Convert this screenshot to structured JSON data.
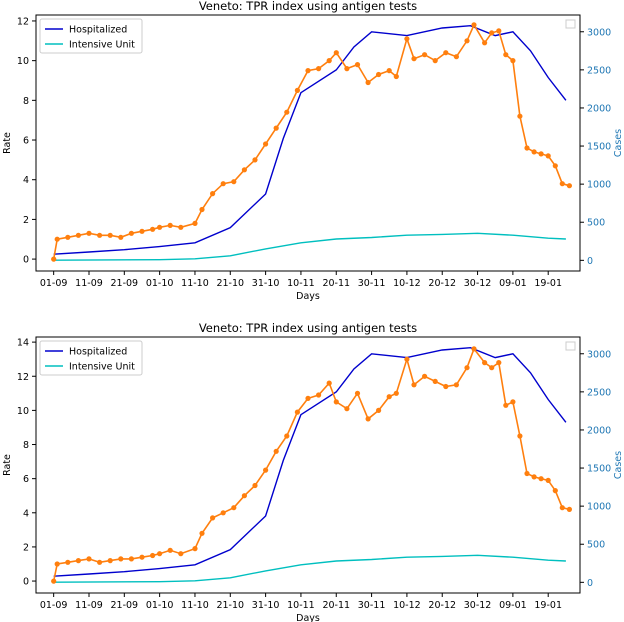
{
  "colors": {
    "hospitalized": "#0000cd",
    "intensive": "#00bfbf",
    "tpr": "#ff7f0e",
    "right_axis": "#1f77b4",
    "axis": "#000000"
  },
  "chart_data": [
    {
      "type": "line",
      "title": "Veneto: TPR index using antigen tests",
      "xlabel": "Days",
      "ylabel_left": "Rate",
      "ylabel_right": "Cases",
      "x_ticks": [
        "01-09",
        "11-09",
        "21-09",
        "01-10",
        "11-10",
        "21-10",
        "31-10",
        "10-11",
        "20-11",
        "30-11",
        "10-12",
        "20-12",
        "30-12",
        "09-01",
        "19-01"
      ],
      "x_range": [
        "2020-08-27",
        "2021-01-28"
      ],
      "ylim_left": [
        -0.6,
        12.3
      ],
      "ylim_right": [
        -140,
        3220
      ],
      "y_ticks_left": [
        0,
        2,
        4,
        6,
        8,
        10,
        12
      ],
      "y_ticks_right": [
        0,
        500,
        1000,
        1500,
        2000,
        2500,
        3000
      ],
      "legend": {
        "placement": "upper left",
        "entries": [
          "Hospitalized",
          "Intensive Unit"
        ]
      },
      "grid": false,
      "series": [
        {
          "name": "Hospitalized",
          "axis": "right",
          "points": [
            [
              "2020-09-01",
              80
            ],
            [
              "2020-09-11",
              110
            ],
            [
              "2020-09-21",
              140
            ],
            [
              "2020-10-01",
              180
            ],
            [
              "2020-10-11",
              230
            ],
            [
              "2020-10-21",
              430
            ],
            [
              "2020-10-31",
              870
            ],
            [
              "2020-11-05",
              1600
            ],
            [
              "2020-11-10",
              2200
            ],
            [
              "2020-11-20",
              2500
            ],
            [
              "2020-11-25",
              2800
            ],
            [
              "2020-11-30",
              3000
            ],
            [
              "2020-12-10",
              2950
            ],
            [
              "2020-12-20",
              3050
            ],
            [
              "2020-12-28",
              3080
            ],
            [
              "2021-01-04",
              2950
            ],
            [
              "2021-01-09",
              3000
            ],
            [
              "2021-01-14",
              2750
            ],
            [
              "2021-01-19",
              2400
            ],
            [
              "2021-01-24",
              2100
            ]
          ]
        },
        {
          "name": "Intensive Unit",
          "axis": "right",
          "points": [
            [
              "2020-09-01",
              2
            ],
            [
              "2020-10-01",
              8
            ],
            [
              "2020-10-11",
              20
            ],
            [
              "2020-10-21",
              60
            ],
            [
              "2020-10-31",
              150
            ],
            [
              "2020-11-10",
              230
            ],
            [
              "2020-11-20",
              280
            ],
            [
              "2020-11-30",
              300
            ],
            [
              "2020-12-10",
              330
            ],
            [
              "2020-12-20",
              340
            ],
            [
              "2020-12-30",
              355
            ],
            [
              "2021-01-09",
              330
            ],
            [
              "2021-01-19",
              290
            ],
            [
              "2021-01-24",
              280
            ]
          ]
        },
        {
          "name": "",
          "axis": "left",
          "markers": true,
          "points": [
            [
              "2020-09-01",
              0
            ],
            [
              "2020-09-02",
              1.0
            ],
            [
              "2020-09-05",
              1.1
            ],
            [
              "2020-09-08",
              1.2
            ],
            [
              "2020-09-11",
              1.3
            ],
            [
              "2020-09-14",
              1.2
            ],
            [
              "2020-09-17",
              1.2
            ],
            [
              "2020-09-20",
              1.1
            ],
            [
              "2020-09-23",
              1.3
            ],
            [
              "2020-09-26",
              1.4
            ],
            [
              "2020-09-29",
              1.5
            ],
            [
              "2020-10-01",
              1.6
            ],
            [
              "2020-10-04",
              1.7
            ],
            [
              "2020-10-07",
              1.6
            ],
            [
              "2020-10-11",
              1.8
            ],
            [
              "2020-10-13",
              2.5
            ],
            [
              "2020-10-16",
              3.3
            ],
            [
              "2020-10-19",
              3.8
            ],
            [
              "2020-10-22",
              3.9
            ],
            [
              "2020-10-25",
              4.5
            ],
            [
              "2020-10-28",
              5.0
            ],
            [
              "2020-10-31",
              5.8
            ],
            [
              "2020-11-03",
              6.6
            ],
            [
              "2020-11-06",
              7.4
            ],
            [
              "2020-11-09",
              8.5
            ],
            [
              "2020-11-12",
              9.5
            ],
            [
              "2020-11-15",
              9.6
            ],
            [
              "2020-11-18",
              10.0
            ],
            [
              "2020-11-20",
              10.4
            ],
            [
              "2020-11-23",
              9.6
            ],
            [
              "2020-11-26",
              9.8
            ],
            [
              "2020-11-29",
              8.9
            ],
            [
              "2020-12-02",
              9.3
            ],
            [
              "2020-12-05",
              9.5
            ],
            [
              "2020-12-07",
              9.2
            ],
            [
              "2020-12-10",
              11.1
            ],
            [
              "2020-12-12",
              10.1
            ],
            [
              "2020-12-15",
              10.3
            ],
            [
              "2020-12-18",
              10.0
            ],
            [
              "2020-12-21",
              10.4
            ],
            [
              "2020-12-24",
              10.2
            ],
            [
              "2020-12-27",
              11.0
            ],
            [
              "2020-12-29",
              11.8
            ],
            [
              "2021-01-01",
              10.9
            ],
            [
              "2021-01-03",
              11.4
            ],
            [
              "2021-01-05",
              11.5
            ],
            [
              "2021-01-07",
              10.3
            ],
            [
              "2021-01-09",
              10.0
            ],
            [
              "2021-01-11",
              7.2
            ],
            [
              "2021-01-13",
              5.6
            ],
            [
              "2021-01-15",
              5.4
            ],
            [
              "2021-01-17",
              5.3
            ],
            [
              "2021-01-19",
              5.2
            ],
            [
              "2021-01-21",
              4.7
            ],
            [
              "2021-01-23",
              3.8
            ],
            [
              "2021-01-25",
              3.7
            ]
          ]
        }
      ]
    },
    {
      "type": "line",
      "title": "Veneto: TPR index using antigen tests",
      "xlabel": "Days",
      "ylabel_left": "Rate",
      "ylabel_right": "Cases",
      "x_ticks": [
        "01-09",
        "11-09",
        "21-09",
        "01-10",
        "11-10",
        "21-10",
        "31-10",
        "10-11",
        "20-11",
        "30-11",
        "10-12",
        "20-12",
        "30-12",
        "09-01",
        "19-01"
      ],
      "x_range": [
        "2020-08-27",
        "2021-01-28"
      ],
      "ylim_left": [
        -0.7,
        14.3
      ],
      "ylim_right": [
        -140,
        3220
      ],
      "y_ticks_left": [
        0,
        2,
        4,
        6,
        8,
        10,
        12,
        14
      ],
      "y_ticks_right": [
        0,
        500,
        1000,
        1500,
        2000,
        2500,
        3000
      ],
      "legend": {
        "placement": "upper left",
        "entries": [
          "Hospitalized",
          "Intensive Unit"
        ]
      },
      "grid": false,
      "series": [
        {
          "name": "Hospitalized",
          "axis": "right",
          "points": [
            [
              "2020-09-01",
              80
            ],
            [
              "2020-09-11",
              110
            ],
            [
              "2020-09-21",
              140
            ],
            [
              "2020-10-01",
              180
            ],
            [
              "2020-10-11",
              230
            ],
            [
              "2020-10-21",
              430
            ],
            [
              "2020-10-31",
              870
            ],
            [
              "2020-11-05",
              1600
            ],
            [
              "2020-11-10",
              2200
            ],
            [
              "2020-11-20",
              2500
            ],
            [
              "2020-11-25",
              2800
            ],
            [
              "2020-11-30",
              3000
            ],
            [
              "2020-12-10",
              2950
            ],
            [
              "2020-12-20",
              3050
            ],
            [
              "2020-12-28",
              3080
            ],
            [
              "2021-01-04",
              2950
            ],
            [
              "2021-01-09",
              3000
            ],
            [
              "2021-01-14",
              2750
            ],
            [
              "2021-01-19",
              2400
            ],
            [
              "2021-01-24",
              2100
            ]
          ]
        },
        {
          "name": "Intensive Unit",
          "axis": "right",
          "points": [
            [
              "2020-09-01",
              2
            ],
            [
              "2020-10-01",
              8
            ],
            [
              "2020-10-11",
              20
            ],
            [
              "2020-10-21",
              60
            ],
            [
              "2020-10-31",
              150
            ],
            [
              "2020-11-10",
              230
            ],
            [
              "2020-11-20",
              280
            ],
            [
              "2020-11-30",
              300
            ],
            [
              "2020-12-10",
              330
            ],
            [
              "2020-12-20",
              340
            ],
            [
              "2020-12-30",
              355
            ],
            [
              "2021-01-09",
              330
            ],
            [
              "2021-01-19",
              290
            ],
            [
              "2021-01-24",
              280
            ]
          ]
        },
        {
          "name": "",
          "axis": "left",
          "markers": true,
          "points": [
            [
              "2020-09-01",
              0
            ],
            [
              "2020-09-02",
              1.0
            ],
            [
              "2020-09-05",
              1.1
            ],
            [
              "2020-09-08",
              1.2
            ],
            [
              "2020-09-11",
              1.3
            ],
            [
              "2020-09-14",
              1.1
            ],
            [
              "2020-09-17",
              1.2
            ],
            [
              "2020-09-20",
              1.3
            ],
            [
              "2020-09-23",
              1.3
            ],
            [
              "2020-09-26",
              1.4
            ],
            [
              "2020-09-29",
              1.5
            ],
            [
              "2020-10-01",
              1.6
            ],
            [
              "2020-10-04",
              1.8
            ],
            [
              "2020-10-07",
              1.6
            ],
            [
              "2020-10-11",
              1.9
            ],
            [
              "2020-10-13",
              2.8
            ],
            [
              "2020-10-16",
              3.7
            ],
            [
              "2020-10-19",
              4.0
            ],
            [
              "2020-10-22",
              4.3
            ],
            [
              "2020-10-25",
              5.0
            ],
            [
              "2020-10-28",
              5.6
            ],
            [
              "2020-10-31",
              6.5
            ],
            [
              "2020-11-03",
              7.6
            ],
            [
              "2020-11-06",
              8.5
            ],
            [
              "2020-11-09",
              9.9
            ],
            [
              "2020-11-12",
              10.7
            ],
            [
              "2020-11-15",
              10.9
            ],
            [
              "2020-11-18",
              11.6
            ],
            [
              "2020-11-20",
              10.5
            ],
            [
              "2020-11-23",
              10.1
            ],
            [
              "2020-11-26",
              11.0
            ],
            [
              "2020-11-29",
              9.5
            ],
            [
              "2020-12-02",
              10.0
            ],
            [
              "2020-12-05",
              10.8
            ],
            [
              "2020-12-07",
              11.0
            ],
            [
              "2020-12-10",
              13.0
            ],
            [
              "2020-12-12",
              11.5
            ],
            [
              "2020-12-15",
              12.0
            ],
            [
              "2020-12-18",
              11.7
            ],
            [
              "2020-12-21",
              11.4
            ],
            [
              "2020-12-24",
              11.5
            ],
            [
              "2020-12-27",
              12.5
            ],
            [
              "2020-12-29",
              13.6
            ],
            [
              "2021-01-01",
              12.8
            ],
            [
              "2021-01-03",
              12.5
            ],
            [
              "2021-01-05",
              12.8
            ],
            [
              "2021-01-07",
              10.3
            ],
            [
              "2021-01-09",
              10.5
            ],
            [
              "2021-01-11",
              8.5
            ],
            [
              "2021-01-13",
              6.3
            ],
            [
              "2021-01-15",
              6.1
            ],
            [
              "2021-01-17",
              6.0
            ],
            [
              "2021-01-19",
              5.9
            ],
            [
              "2021-01-21",
              5.3
            ],
            [
              "2021-01-23",
              4.3
            ],
            [
              "2021-01-25",
              4.2
            ]
          ]
        }
      ]
    }
  ]
}
